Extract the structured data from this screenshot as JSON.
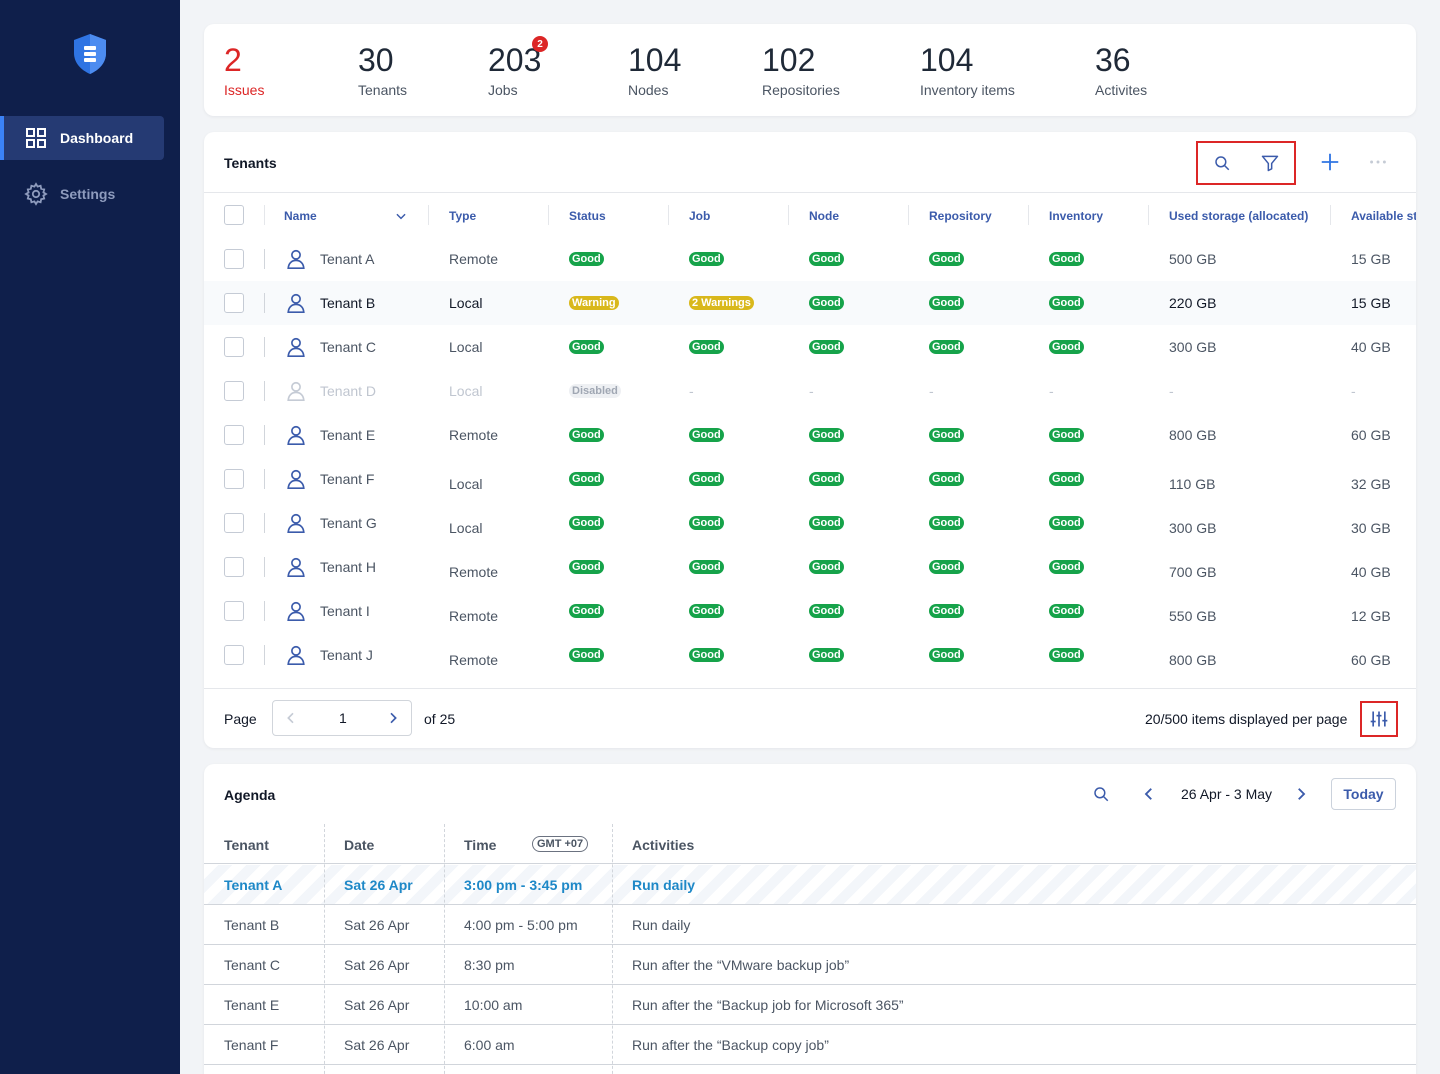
{
  "sidebar": {
    "items": [
      {
        "label": "Dashboard",
        "icon": "grid-icon",
        "active": true
      },
      {
        "label": "Settings",
        "icon": "gear-icon",
        "active": false
      }
    ]
  },
  "stats": [
    {
      "value": "2",
      "label": "Issues"
    },
    {
      "value": "30",
      "label": "Tenants"
    },
    {
      "value": "203",
      "label": "Jobs",
      "badge": "2"
    },
    {
      "value": "104",
      "label": "Nodes"
    },
    {
      "value": "102",
      "label": "Repositories"
    },
    {
      "value": "104",
      "label": "Inventory items"
    },
    {
      "value": "36",
      "label": "Activites"
    }
  ],
  "tenants": {
    "title": "Tenants",
    "columns": [
      "Name",
      "Type",
      "Status",
      "Job",
      "Node",
      "Repository",
      "Inventory",
      "Used storage (allocated)",
      "Available st"
    ],
    "rows": [
      {
        "name": "Tenant A",
        "type": "Remote",
        "status": "Good",
        "job": "Good",
        "node": "Good",
        "repository": "Good",
        "inventory": "Good",
        "used": "500 GB",
        "available": "15 GB"
      },
      {
        "name": "Tenant B",
        "type": "Local",
        "status": "Warning",
        "job": "2 Warnings",
        "node": "Good",
        "repository": "Good",
        "inventory": "Good",
        "used": "220 GB",
        "available": "15 GB"
      },
      {
        "name": "Tenant C",
        "type": "Local",
        "status": "Good",
        "job": "Good",
        "node": "Good",
        "repository": "Good",
        "inventory": "Good",
        "used": "300 GB",
        "available": "40 GB"
      },
      {
        "name": "Tenant D",
        "type": "Local",
        "status": "Disabled",
        "job": "-",
        "node": "-",
        "repository": "-",
        "inventory": "-",
        "used": "-",
        "available": "-"
      },
      {
        "name": "Tenant E",
        "type": "Remote",
        "status": "Good",
        "job": "Good",
        "node": "Good",
        "repository": "Good",
        "inventory": "Good",
        "used": "800 GB",
        "available": "60 GB"
      },
      {
        "name": "Tenant F",
        "type": "Local",
        "status": "Good",
        "job": "Good",
        "node": "Good",
        "repository": "Good",
        "inventory": "Good",
        "used": "110 GB",
        "available": "32 GB"
      },
      {
        "name": "Tenant G",
        "type": "Local",
        "status": "Good",
        "job": "Good",
        "node": "Good",
        "repository": "Good",
        "inventory": "Good",
        "used": "300 GB",
        "available": "30 GB"
      },
      {
        "name": "Tenant H",
        "type": "Remote",
        "status": "Good",
        "job": "Good",
        "node": "Good",
        "repository": "Good",
        "inventory": "Good",
        "used": "700 GB",
        "available": "40 GB"
      },
      {
        "name": "Tenant I",
        "type": "Remote",
        "status": "Good",
        "job": "Good",
        "node": "Good",
        "repository": "Good",
        "inventory": "Good",
        "used": "550 GB",
        "available": "12 GB"
      },
      {
        "name": "Tenant J",
        "type": "Remote",
        "status": "Good",
        "job": "Good",
        "node": "Good",
        "repository": "Good",
        "inventory": "Good",
        "used": "800 GB",
        "available": "60 GB"
      }
    ],
    "pagination": {
      "page_label": "Page",
      "current_page": "1",
      "of_label": "of 25",
      "items_info": "20/500 items displayed per page"
    }
  },
  "agenda": {
    "title": "Agenda",
    "date_range": "26 Apr - 3 May",
    "today_label": "Today",
    "columns": [
      "Tenant",
      "Date",
      "Time",
      "Activities"
    ],
    "timezone": "GMT +07",
    "rows": [
      {
        "tenant": "Tenant A",
        "date": "Sat 26 Apr",
        "time": "3:00 pm - 3:45 pm",
        "activity": "Run daily"
      },
      {
        "tenant": "Tenant B",
        "date": "Sat 26 Apr",
        "time": "4:00 pm - 5:00 pm",
        "activity": "Run daily"
      },
      {
        "tenant": "Tenant C",
        "date": "Sat 26 Apr",
        "time": "8:30 pm",
        "activity": "Run after the “VMware backup job”"
      },
      {
        "tenant": "Tenant E",
        "date": "Sat 26 Apr",
        "time": "10:00 am",
        "activity": "Run after the “Backup job for Microsoft 365”"
      },
      {
        "tenant": "Tenant F",
        "date": "Sat 26 Apr",
        "time": "6:00 am",
        "activity": "Run after the “Backup copy job”"
      }
    ]
  },
  "colors": {
    "sidebar_bg": "#0f1f4b",
    "accent": "#3b5bab",
    "good": "#16a34a",
    "warning": "#d9b81c",
    "danger": "#dc2626",
    "link": "#1e88c7"
  }
}
